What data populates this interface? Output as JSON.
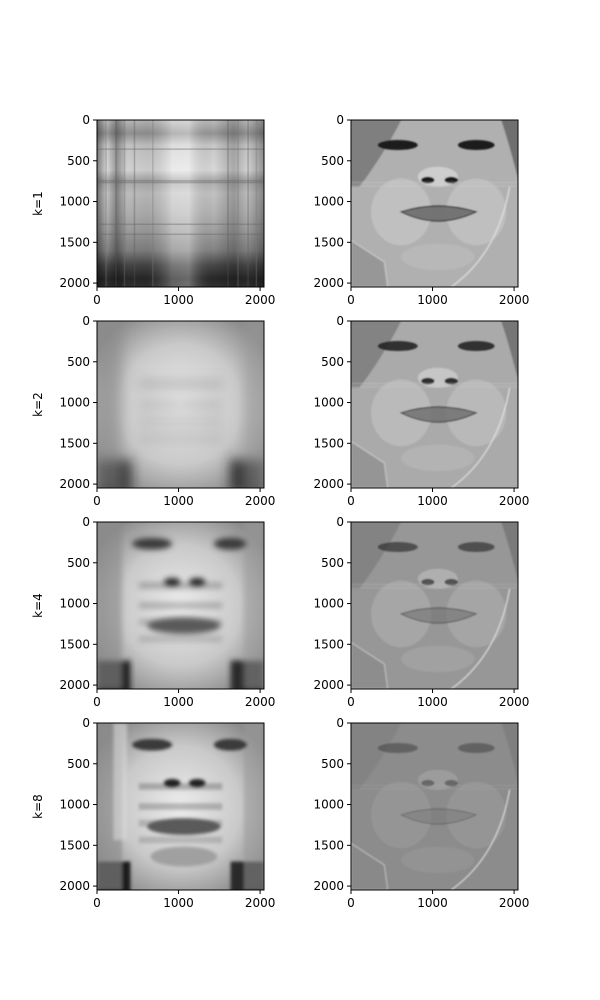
{
  "chart_data": {
    "type": "heatmap",
    "colormap": "grayscale",
    "layout": {
      "rows": 4,
      "cols": 2
    },
    "x_ticks": [
      0,
      1000,
      2000
    ],
    "y_ticks": [
      0,
      500,
      1000,
      1500,
      2000
    ],
    "x_range": [
      0,
      2048
    ],
    "y_range": [
      2048,
      0
    ],
    "row_labels": [
      "k=1",
      "k=2",
      "k=4",
      "k=8"
    ],
    "panels": [
      {
        "row": 0,
        "col": 0,
        "ylabel": "k=1",
        "content": "rank-1 approximation"
      },
      {
        "row": 0,
        "col": 1,
        "ylabel": "",
        "content": "residual"
      },
      {
        "row": 1,
        "col": 0,
        "ylabel": "k=2",
        "content": "rank-2 approximation"
      },
      {
        "row": 1,
        "col": 1,
        "ylabel": "",
        "content": "residual"
      },
      {
        "row": 2,
        "col": 0,
        "ylabel": "k=4",
        "content": "rank-4 approximation"
      },
      {
        "row": 2,
        "col": 1,
        "ylabel": "",
        "content": "residual"
      },
      {
        "row": 3,
        "col": 0,
        "ylabel": "k=8",
        "content": "rank-8 approximation"
      },
      {
        "row": 3,
        "col": 1,
        "ylabel": "",
        "content": "residual"
      }
    ]
  }
}
